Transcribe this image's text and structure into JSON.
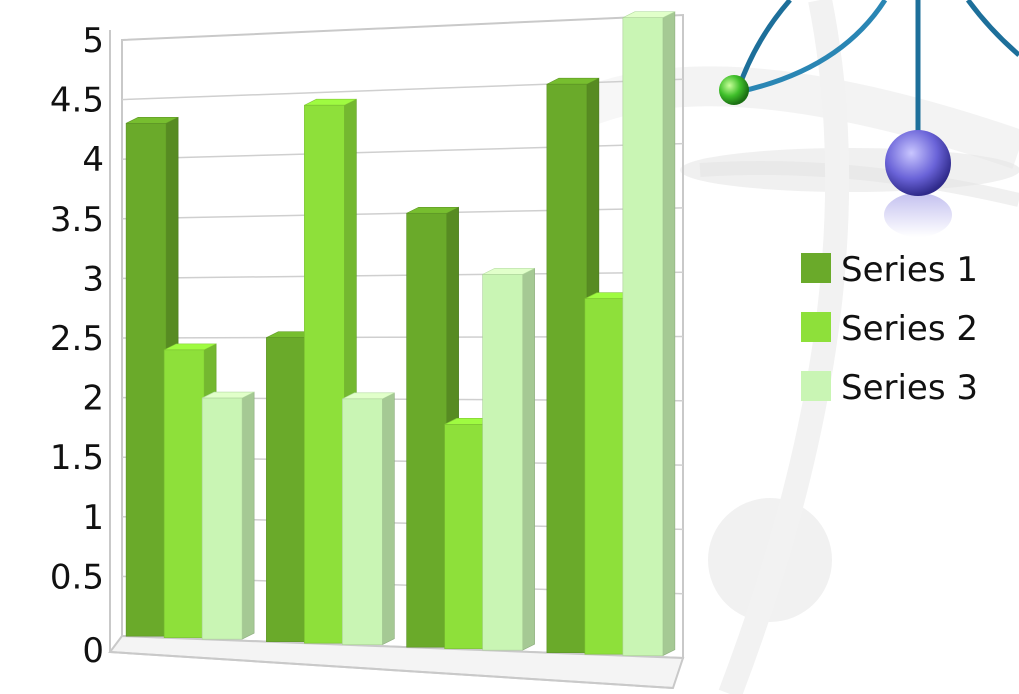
{
  "chart_data": {
    "type": "bar",
    "title": "",
    "xlabel": "",
    "ylabel": "",
    "categories": [
      "",
      "",
      "",
      ""
    ],
    "series": [
      {
        "name": "Series 1",
        "values": [
          4.3,
          2.5,
          3.5,
          4.5
        ],
        "color": "#6aaa2a"
      },
      {
        "name": "Series 2",
        "values": [
          2.4,
          4.4,
          1.8,
          2.8
        ],
        "color": "#8ee03a"
      },
      {
        "name": "Series 3",
        "values": [
          2.0,
          2.0,
          3.0,
          5.0
        ],
        "color": "#c9f5b4"
      }
    ],
    "ylim": [
      0,
      5
    ],
    "yticks": [
      "0",
      "0.5",
      "1",
      "1.5",
      "2",
      "2.5",
      "3",
      "3.5",
      "4",
      "4.5",
      "5"
    ],
    "grid": true,
    "legend_position": "right",
    "style": "3d-clustered-column"
  }
}
